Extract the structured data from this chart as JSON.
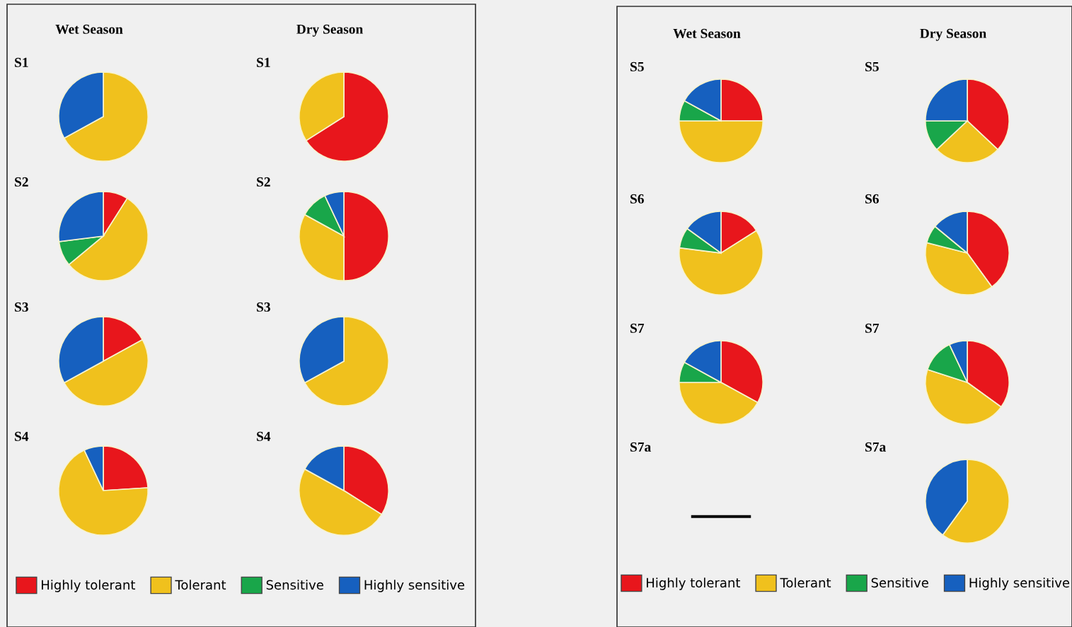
{
  "chart_data": [
    {
      "type": "pie",
      "title": "Wet Season",
      "subtitle": "S1",
      "categories": [
        null,
        null,
        null,
        null
      ],
      "values": [
        null,
        67,
        null,
        33
      ],
      "colors": [
        "#e8161c",
        "#f0c11d",
        "#19a64a",
        "#1660bf"
      ]
    },
    {
      "type": "pie",
      "title": "Dry Season",
      "subtitle": "S1",
      "categories": [
        null,
        null,
        null,
        null
      ],
      "values": [
        66,
        34,
        null,
        null
      ],
      "colors": [
        "#e8161c",
        "#f0c11d",
        "#19a64a",
        "#1660bf"
      ]
    },
    {
      "type": "pie",
      "subtitle": "S2",
      "categories": [
        null,
        null,
        null,
        null
      ],
      "values": [
        9,
        55,
        9,
        27
      ],
      "colors": [
        "#e8161c",
        "#f0c11d",
        "#19a64a",
        "#1660bf"
      ]
    },
    {
      "type": "pie",
      "subtitle": "S2",
      "categories": [
        null,
        null,
        null,
        null
      ],
      "values": [
        50,
        33,
        10,
        7
      ],
      "colors": [
        "#e8161c",
        "#f0c11d",
        "#19a64a",
        "#1660bf"
      ]
    },
    {
      "type": "pie",
      "subtitle": "S3",
      "categories": [
        null,
        null,
        null,
        null
      ],
      "values": [
        17,
        50,
        null,
        33
      ],
      "colors": [
        "#e8161c",
        "#f0c11d",
        "#19a64a",
        "#1660bf"
      ]
    },
    {
      "type": "pie",
      "subtitle": "S3",
      "categories": [
        null,
        null,
        null,
        null
      ],
      "values": [
        null,
        67,
        null,
        33
      ],
      "colors": [
        "#e8161c",
        "#f0c11d",
        "#19a64a",
        "#1660bf"
      ]
    },
    {
      "type": "pie",
      "subtitle": "S4",
      "categories": [
        null,
        null,
        null,
        null
      ],
      "values": [
        24,
        69,
        null,
        7
      ],
      "colors": [
        "#e8161c",
        "#f0c11d",
        "#19a64a",
        "#1660bf"
      ]
    },
    {
      "type": "pie",
      "subtitle": "S4",
      "legend": "bottom",
      "categories": [
        "Highly tolerant",
        "Tolerant",
        "Sensitive",
        "Highly sensitive"
      ],
      "values": [
        34,
        49,
        null,
        17
      ],
      "colors": [
        "#e8161c",
        "#f0c11d",
        "#19a64a",
        "#1660bf"
      ]
    },
    {
      "type": "pie",
      "title": "Wet Season",
      "subtitle": "S5",
      "categories": [
        null,
        null,
        null,
        null
      ],
      "values": [
        25,
        50,
        8,
        17
      ],
      "colors": [
        "#e8161c",
        "#f0c11d",
        "#19a64a",
        "#1660bf"
      ]
    },
    {
      "type": "pie",
      "title": "Dry Season",
      "subtitle": "S5",
      "categories": [
        null,
        null,
        null,
        null
      ],
      "values": [
        37,
        26,
        12,
        25
      ],
      "colors": [
        "#e8161c",
        "#f0c11d",
        "#19a64a",
        "#1660bf"
      ]
    },
    {
      "type": "pie",
      "subtitle": "S6",
      "categories": [
        null,
        null,
        null,
        null
      ],
      "values": [
        16,
        61,
        8,
        15
      ],
      "colors": [
        "#e8161c",
        "#f0c11d",
        "#19a64a",
        "#1660bf"
      ]
    },
    {
      "type": "pie",
      "subtitle": "S6",
      "categories": [
        null,
        null,
        null,
        null
      ],
      "values": [
        40,
        39,
        7,
        14
      ],
      "colors": [
        "#e8161c",
        "#f0c11d",
        "#19a64a",
        "#1660bf"
      ]
    },
    {
      "type": "pie",
      "subtitle": "S7",
      "categories": [
        null,
        null,
        null,
        null
      ],
      "values": [
        33,
        42,
        8,
        17
      ],
      "colors": [
        "#e8161c",
        "#f0c11d",
        "#19a64a",
        "#1660bf"
      ]
    },
    {
      "type": "pie",
      "subtitle": "S7",
      "categories": [
        null,
        null,
        null,
        null
      ],
      "values": [
        35,
        45,
        13,
        7
      ],
      "colors": [
        "#e8161c",
        "#f0c11d",
        "#19a64a",
        "#1660bf"
      ]
    },
    {
      "type": "other",
      "subtitle": "S7a",
      "annotations": [
        "—"
      ]
    },
    {
      "type": "pie",
      "subtitle": "S7a",
      "legend": "bottom",
      "categories": [
        "Highly tolerant",
        "Tolerant",
        "Sensitive",
        "Highly sensitive"
      ],
      "values": [
        null,
        60,
        null,
        40
      ],
      "colors": [
        "#e8161c",
        "#f0c11d",
        "#19a64a",
        "#1660bf"
      ]
    }
  ]
}
